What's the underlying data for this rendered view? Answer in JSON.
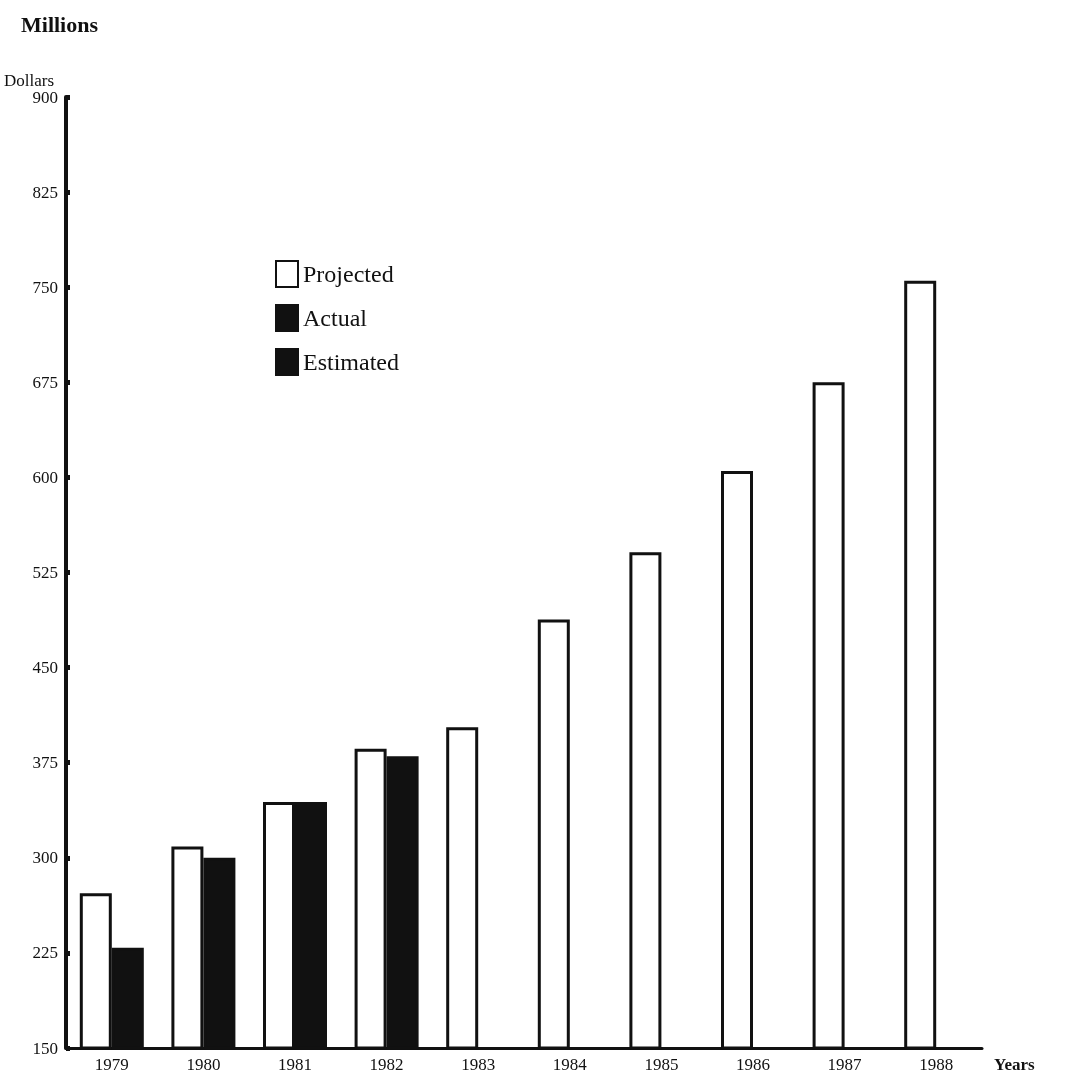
{
  "chart_data": {
    "type": "bar",
    "title": "Millions",
    "ylabel": "Dollars",
    "xlabel": "Years",
    "categories": [
      "1979",
      "1980",
      "1981",
      "1982",
      "1983",
      "1984",
      "1985",
      "1986",
      "1987",
      "1988"
    ],
    "series": [
      {
        "name": "Projected",
        "color": "#ffffff",
        "values": [
          272,
          309,
          344,
          386,
          403,
          488,
          541,
          605,
          675,
          755
        ]
      },
      {
        "name": "Actual",
        "color": "#111111",
        "values": [
          229,
          300,
          344,
          null,
          null,
          null,
          null,
          null,
          null,
          null
        ]
      },
      {
        "name": "Estimated",
        "color": "#111111",
        "values": [
          null,
          null,
          null,
          380,
          null,
          null,
          null,
          null,
          null,
          null
        ]
      }
    ],
    "ylim": [
      150,
      900
    ],
    "yticks": [
      150,
      225,
      300,
      375,
      450,
      525,
      600,
      675,
      750,
      825,
      900
    ],
    "grid": false,
    "legend": "top left"
  }
}
